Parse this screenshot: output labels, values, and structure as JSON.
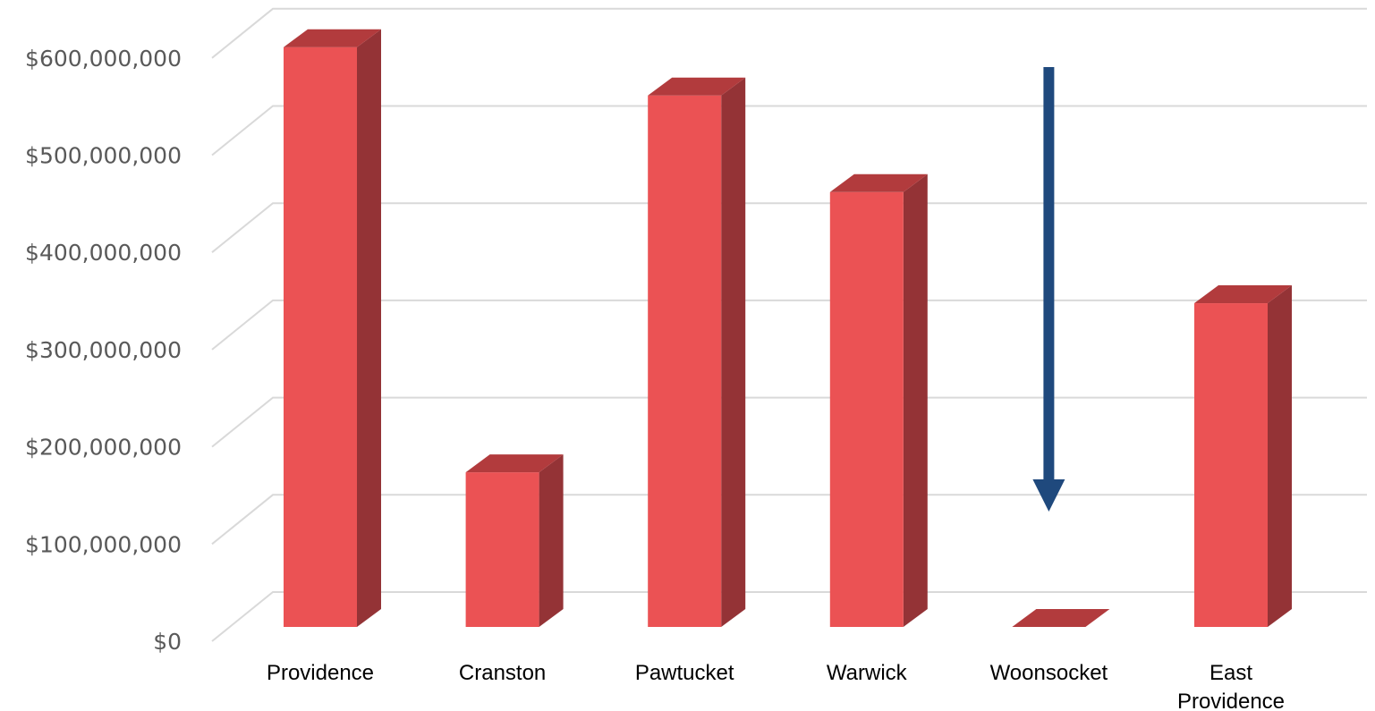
{
  "chart_data": {
    "type": "bar",
    "style": "3d-column",
    "title": "",
    "xlabel": "",
    "ylabel": "",
    "categories": [
      "Providence",
      "Cranston",
      "Pawtucket",
      "Warwick",
      "Woonsocket",
      "East Providence"
    ],
    "values": [
      600000000,
      160000000,
      550000000,
      450000000,
      0,
      335000000
    ],
    "ylim": [
      0,
      600000000
    ],
    "yticks": [
      0,
      100000000,
      200000000,
      300000000,
      400000000,
      500000000,
      600000000
    ],
    "ytick_labels": [
      "$0",
      "$100,000,000",
      "$200,000,000",
      "$300,000,000",
      "$400,000,000",
      "$500,000,000",
      "$600,000,000"
    ],
    "grid": true,
    "legend": "none",
    "annotations": [
      {
        "type": "arrow",
        "direction": "down",
        "category": "Woonsocket",
        "color": "#1f497d"
      }
    ],
    "colors": {
      "bar_front": "#eb5254",
      "bar_side": "#943336",
      "bar_top": "#b23b3d",
      "grid": "#d9d9d9",
      "arrow": "#1f497d"
    }
  }
}
